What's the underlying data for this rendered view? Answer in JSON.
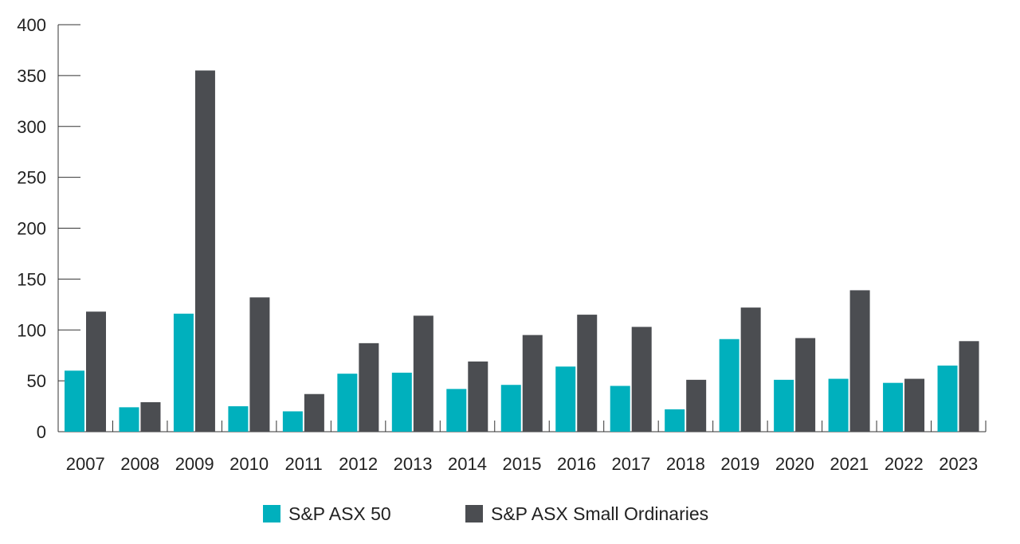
{
  "chart_data": {
    "type": "bar",
    "title": "",
    "xlabel": "",
    "ylabel": "",
    "ylim": [
      0,
      400
    ],
    "yticks": [
      "0",
      "50",
      "100",
      "150",
      "200",
      "250",
      "300",
      "350",
      "400"
    ],
    "categories": [
      "2007",
      "2008",
      "2009",
      "2010",
      "2011",
      "2012",
      "2013",
      "2014",
      "2015",
      "2016",
      "2017",
      "2018",
      "2019",
      "2020",
      "2021",
      "2022",
      "2023"
    ],
    "series": [
      {
        "name": "S&P ASX 50",
        "color": "#00b0bd",
        "values": [
          60,
          24,
          116,
          25,
          20,
          57,
          58,
          42,
          46,
          64,
          45,
          22,
          91,
          51,
          52,
          48,
          65
        ]
      },
      {
        "name": "S&P ASX Small Ordinaries",
        "color": "#4b4d51",
        "values": [
          118,
          29,
          355,
          132,
          37,
          87,
          114,
          69,
          95,
          115,
          103,
          51,
          122,
          92,
          139,
          52,
          89
        ]
      }
    ],
    "legend_position": "bottom"
  }
}
